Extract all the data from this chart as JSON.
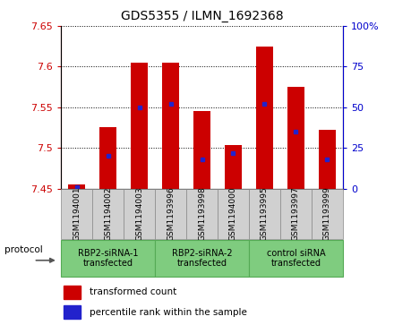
{
  "title": "GDS5355 / ILMN_1692368",
  "samples": [
    "GSM1194001",
    "GSM1194002",
    "GSM1194003",
    "GSM1193996",
    "GSM1193998",
    "GSM1194000",
    "GSM1193995",
    "GSM1193997",
    "GSM1193999"
  ],
  "transformed_counts": [
    7.455,
    7.525,
    7.605,
    7.605,
    7.545,
    7.503,
    7.625,
    7.575,
    7.522
  ],
  "percentile_ranks": [
    1,
    20,
    50,
    52,
    18,
    22,
    52,
    35,
    18
  ],
  "groups": [
    {
      "label": "RBP2-siRNA-1\ntransfected",
      "start": 0,
      "end": 2
    },
    {
      "label": "RBP2-siRNA-2\ntransfected",
      "start": 3,
      "end": 5
    },
    {
      "label": "control siRNA\ntransfected",
      "start": 6,
      "end": 8
    }
  ],
  "y_min": 7.45,
  "y_max": 7.65,
  "y_ticks": [
    7.45,
    7.5,
    7.55,
    7.6,
    7.65
  ],
  "y2_ticks": [
    0,
    25,
    50,
    75,
    100
  ],
  "bar_color": "#CC0000",
  "percentile_color": "#2222CC",
  "bar_width": 0.55,
  "sample_box_color": "#d0d0d0",
  "group_box_color": "#7FCC7F",
  "protocol_label": "protocol"
}
